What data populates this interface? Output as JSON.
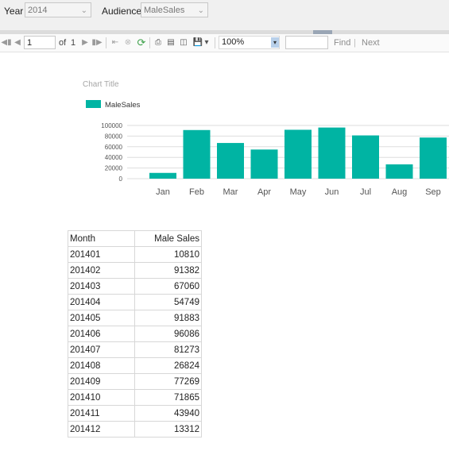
{
  "parameters": {
    "year_label": "Year",
    "year_value": "2014",
    "audience_label": "Audience",
    "audience_value": "MaleSales"
  },
  "toolbar": {
    "page_number": "1",
    "of_label": "of",
    "total_pages": "1",
    "zoom": "100%",
    "find_value": "",
    "find_label": "Find",
    "separator": "|",
    "next_label": "Next"
  },
  "chart_data": {
    "type": "bar",
    "title": "Chart Title",
    "legend": [
      "MaleSales"
    ],
    "legend_position": "top-left",
    "categories": [
      "Jan",
      "Feb",
      "Mar",
      "Apr",
      "May",
      "Jun",
      "Jul",
      "Aug",
      "Sep"
    ],
    "series": [
      {
        "name": "MaleSales",
        "values": [
          10810,
          91382,
          67060,
          54749,
          91883,
          96086,
          81273,
          26824,
          77269
        ]
      }
    ],
    "y_ticks": [
      "0",
      "20000",
      "40000",
      "60000",
      "80000",
      "100000"
    ],
    "ylim": [
      0,
      100000
    ],
    "grid": true,
    "color": "#00b4a3"
  },
  "table": {
    "headers": [
      "Month",
      "Male Sales"
    ],
    "rows": [
      [
        "201401",
        "10810"
      ],
      [
        "201402",
        "91382"
      ],
      [
        "201403",
        "67060"
      ],
      [
        "201404",
        "54749"
      ],
      [
        "201405",
        "91883"
      ],
      [
        "201406",
        "96086"
      ],
      [
        "201407",
        "81273"
      ],
      [
        "201408",
        "26824"
      ],
      [
        "201409",
        "77269"
      ],
      [
        "201410",
        "71865"
      ],
      [
        "201411",
        "43940"
      ],
      [
        "201412",
        "13312"
      ]
    ]
  }
}
